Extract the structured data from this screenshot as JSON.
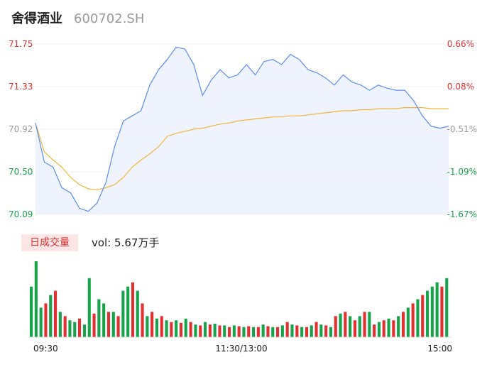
{
  "header": {
    "stock_name": "舍得酒业",
    "stock_code": "600702.SH"
  },
  "volume": {
    "tab_label": "日成交量",
    "readout": "vol: 5.67万手"
  },
  "colors": {
    "up": "#e0302f",
    "down": "#16a34a",
    "price_line": "#5b8def",
    "avg_line": "#f2b53a",
    "area_fill": "#eef3fd",
    "flat": "#999999"
  },
  "chart_data": {
    "type": "line",
    "title": "",
    "ylabel": "",
    "xlabel": "",
    "x_ticks": [
      "09:30",
      "11:30/13:00",
      "15:00"
    ],
    "y_ticks_price": [
      "71.75",
      "71.33",
      "70.92",
      "70.50",
      "70.09"
    ],
    "y_ticks_pct": [
      "0.66%",
      "0.08%",
      "-0.51%",
      "-1.09%",
      "-1.67%"
    ],
    "ylim": [
      70.09,
      71.75
    ],
    "series": [
      {
        "values": [
          70.98,
          70.6,
          70.55,
          70.35,
          70.3,
          70.15,
          70.12,
          70.2,
          70.4,
          70.75,
          71.0,
          71.05,
          71.1,
          71.35,
          71.5,
          71.6,
          71.72,
          71.7,
          71.55,
          71.25,
          71.4,
          71.5,
          71.42,
          71.45,
          71.55,
          71.45,
          71.58,
          71.6,
          71.55,
          71.65,
          71.6,
          71.5,
          71.47,
          71.42,
          71.35,
          71.45,
          71.38,
          71.35,
          71.3,
          71.35,
          71.32,
          71.3,
          71.3,
          71.2,
          71.05,
          70.95,
          70.93,
          70.95
        ]
      },
      {
        "values": [
          70.98,
          70.7,
          70.62,
          70.55,
          70.45,
          70.38,
          70.34,
          70.33,
          70.35,
          70.38,
          70.45,
          70.55,
          70.62,
          70.68,
          70.75,
          70.85,
          70.88,
          70.9,
          70.92,
          70.93,
          70.95,
          70.97,
          70.98,
          71.0,
          71.01,
          71.02,
          71.03,
          71.04,
          71.04,
          71.05,
          71.05,
          71.06,
          71.07,
          71.08,
          71.09,
          71.1,
          71.1,
          71.11,
          71.11,
          71.12,
          71.12,
          71.12,
          71.13,
          71.13,
          71.13,
          71.12,
          71.12,
          71.12
        ]
      }
    ],
    "volume_values": [
      60,
      90,
      35,
      40,
      50,
      55,
      30,
      25,
      20,
      18,
      22,
      15,
      70,
      28,
      45,
      40,
      30,
      30,
      25,
      55,
      60,
      65,
      55,
      40,
      25,
      30,
      22,
      25,
      20,
      18,
      20,
      17,
      22,
      18,
      15,
      14,
      18,
      15,
      16,
      14,
      14,
      12,
      14,
      13,
      12,
      13,
      12,
      12,
      15,
      13,
      12,
      12,
      14,
      18,
      15,
      14,
      12,
      12,
      14,
      18,
      15,
      14,
      12,
      25,
      28,
      30,
      25,
      20,
      25,
      30,
      30,
      15,
      18,
      20,
      22,
      20,
      25,
      30,
      35,
      40,
      45,
      50,
      55,
      60,
      65,
      60,
      70
    ],
    "volume_colors": [
      "down",
      "down",
      "down",
      "up",
      "down",
      "up",
      "down",
      "up",
      "down",
      "down",
      "up",
      "down",
      "down",
      "up",
      "down",
      "down",
      "up",
      "down",
      "up",
      "down",
      "down",
      "up",
      "down",
      "up",
      "down",
      "up",
      "down",
      "up",
      "down",
      "up",
      "down",
      "up",
      "down",
      "up",
      "down",
      "up",
      "down",
      "up",
      "down",
      "up",
      "down",
      "up",
      "down",
      "up",
      "down",
      "up",
      "down",
      "up",
      "down",
      "up",
      "down",
      "up",
      "down",
      "up",
      "down",
      "up",
      "down",
      "up",
      "down",
      "up",
      "down",
      "up",
      "down",
      "up",
      "down",
      "up",
      "down",
      "up",
      "down",
      "up",
      "down",
      "up",
      "down",
      "up",
      "down",
      "up",
      "down",
      "up",
      "down",
      "up",
      "down",
      "up",
      "down",
      "down",
      "down",
      "up",
      "down"
    ]
  }
}
